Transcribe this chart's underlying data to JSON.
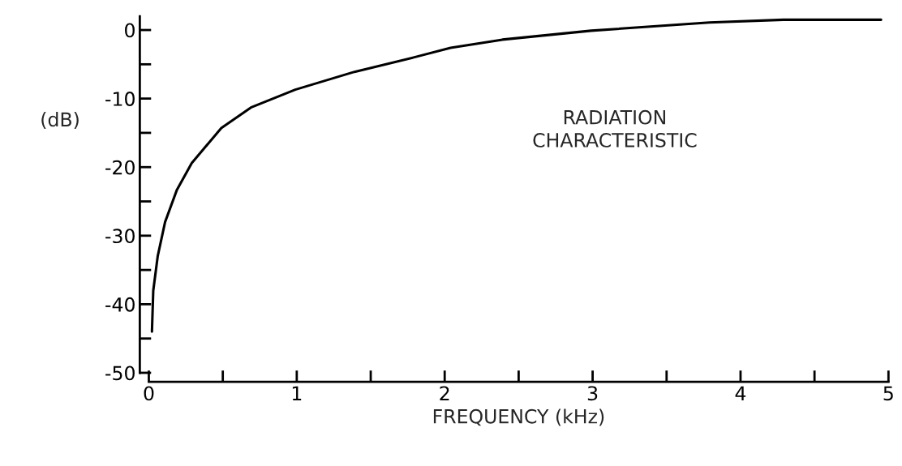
{
  "chart_data": {
    "type": "line",
    "xlabel": "FREQUENCY (kHz)",
    "ylabel": "(dB)",
    "annotations": [
      "RADIATION\nCHARACTERISTIC"
    ],
    "x": [
      0.021,
      0.03,
      0.06,
      0.11,
      0.19,
      0.29,
      0.49,
      0.69,
      0.99,
      1.39,
      1.79,
      2.04,
      2.39,
      2.99,
      3.79,
      4.29,
      4.95
    ],
    "series": [
      {
        "color": "#000000",
        "values": [
          -44,
          -38,
          -33,
          -28,
          -23.3,
          -19.4,
          -14.3,
          -11.3,
          -8.7,
          -6.1,
          -4.0,
          -2.6,
          -1.4,
          -0.1,
          1.1,
          1.5,
          1.5
        ]
      }
    ],
    "xlim": [
      0,
      5
    ],
    "ylim": [
      -50,
      2
    ],
    "xticks": [
      0,
      {
        "value": 0.5,
        "label": null
      },
      1,
      {
        "value": 1.5,
        "label": null
      },
      2,
      {
        "value": 2.5,
        "label": null
      },
      3,
      {
        "value": 3.5,
        "label": null
      },
      4,
      {
        "value": 4.5,
        "label": null
      },
      5
    ],
    "yticks": [
      -50,
      {
        "value": -45,
        "label": null
      },
      -40,
      {
        "value": -35,
        "label": null
      },
      -30,
      {
        "value": -25,
        "label": null
      },
      -20,
      {
        "value": -15,
        "label": null
      },
      -10,
      {
        "value": -5,
        "label": null
      },
      0
    ],
    "grid": false,
    "legend": false,
    "line_style": "solid",
    "marker": "none"
  }
}
